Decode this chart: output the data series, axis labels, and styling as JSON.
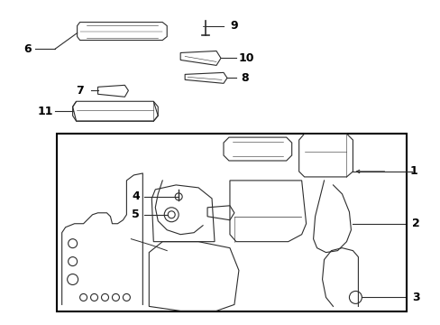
{
  "bg_color": "#ffffff",
  "line_color": "#2d2d2d",
  "label_color": "#000000",
  "box_color": "#000000",
  "figsize": [
    4.89,
    3.6
  ],
  "dpi": 100
}
